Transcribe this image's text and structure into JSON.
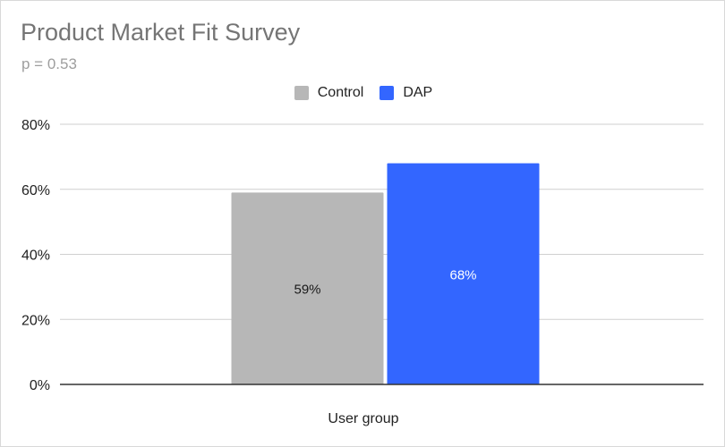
{
  "chart_data": {
    "type": "bar",
    "title": "Product Market Fit Survey",
    "subtitle": "p = 0.53",
    "xlabel": "User group",
    "ylabel": "",
    "categories": [
      "User group"
    ],
    "series": [
      {
        "name": "Control",
        "values": [
          59
        ],
        "color": "#b7b7b7",
        "label": "59%",
        "label_color": "#1a1a1a"
      },
      {
        "name": "DAP",
        "values": [
          68
        ],
        "color": "#3366ff",
        "label": "68%",
        "label_color": "#ffffff"
      }
    ],
    "ylim": [
      0,
      80
    ],
    "yticks": [
      {
        "value": 0,
        "label": "0%"
      },
      {
        "value": 20,
        "label": "20%"
      },
      {
        "value": 40,
        "label": "40%"
      },
      {
        "value": 60,
        "label": "60%"
      },
      {
        "value": 80,
        "label": "80%"
      }
    ],
    "grid": true,
    "legend_position": "top-center"
  }
}
